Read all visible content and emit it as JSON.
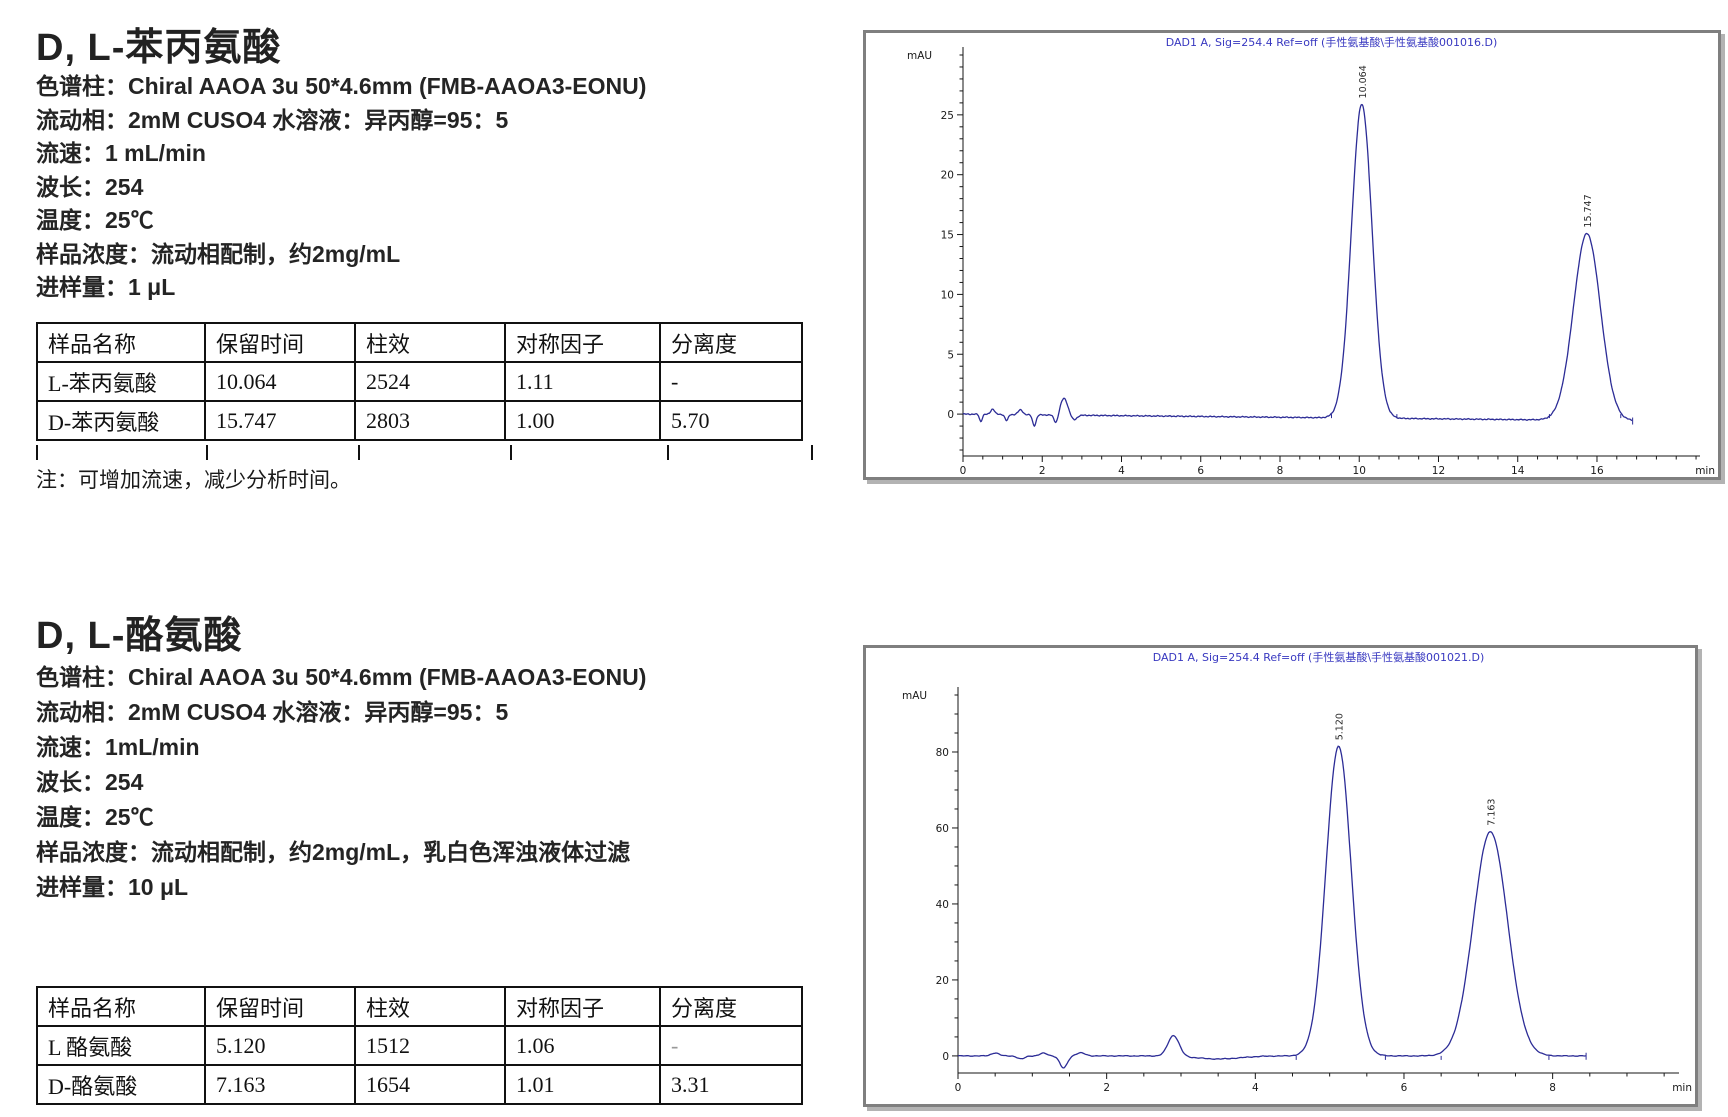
{
  "sections": [
    {
      "title": "D, L-苯丙氨酸",
      "params": [
        "色谱柱：Chiral AAOA 3u 50*4.6mm (FMB-AAOA3-EONU)",
        "流动相：2mM CUSO4 水溶液：异丙醇=95：5",
        "流速：1 mL/min",
        "波长：254",
        "温度：25℃",
        "样品浓度：流动相配制，约2mg/mL",
        "进样量：1 μL"
      ],
      "table": {
        "headers": [
          "样品名称",
          "保留时间",
          "柱效",
          "对称因子",
          "分离度"
        ],
        "rows": [
          [
            "L-苯丙氨酸",
            "10.064",
            "2524",
            "1.11",
            "-"
          ],
          [
            "D-苯丙氨酸",
            "15.747",
            "2803",
            "1.00",
            "5.70"
          ]
        ]
      },
      "note": "注：可增加流速，减少分析时间。"
    },
    {
      "title": "D, L-酪氨酸",
      "params": [
        "色谱柱：Chiral AAOA 3u 50*4.6mm (FMB-AAOA3-EONU)",
        "流动相：2mM CUSO4 水溶液：异丙醇=95：5",
        "流速：1mL/min",
        "波长：254",
        "温度：25℃",
        "样品浓度：流动相配制，约2mg/mL，乳白色浑浊液体过滤",
        "进样量：10 μL"
      ],
      "table": {
        "headers": [
          "样品名称",
          "保留时间",
          "柱效",
          "对称因子",
          "分离度"
        ],
        "rows": [
          [
            "L 酪氨酸",
            "5.120",
            "1512",
            "1.06",
            "-"
          ],
          [
            "D-酪氨酸",
            "7.163",
            "1654",
            "1.01",
            "3.31"
          ]
        ]
      },
      "note": ""
    }
  ],
  "chart_data": [
    {
      "type": "line",
      "title": "DAD1 A, Sig=254.4 Ref=off (手性氨基酸\\手性氨基酸001016.D)",
      "ylabel": "mAU",
      "xlabel": "min",
      "xlim": [
        0,
        18.6
      ],
      "ylim": [
        -3.5,
        30
      ],
      "xticks": [
        0,
        2,
        4,
        6,
        8,
        10,
        12,
        14,
        16
      ],
      "yticks": [
        0,
        5,
        10,
        15,
        20,
        25
      ],
      "x_minor": 0.5,
      "y_minor": 1,
      "trace_end": 16.9,
      "peaks": [
        {
          "rt": 10.064,
          "height": 26.2,
          "sigma": 0.26,
          "label": "10.064"
        },
        {
          "rt": 15.747,
          "height": 15.6,
          "sigma": 0.34,
          "label": "15.747"
        }
      ],
      "baseline_features": [
        {
          "rt": 0.45,
          "height": -0.6,
          "sigma": 0.035
        },
        {
          "rt": 0.75,
          "height": 0.45,
          "sigma": 0.05
        },
        {
          "rt": 1.1,
          "height": -0.5,
          "sigma": 0.04
        },
        {
          "rt": 1.45,
          "height": 0.4,
          "sigma": 0.06
        },
        {
          "rt": 1.8,
          "height": -0.9,
          "sigma": 0.045
        },
        {
          "rt": 2.35,
          "height": -0.7,
          "sigma": 0.05
        },
        {
          "rt": 2.55,
          "height": 1.4,
          "sigma": 0.09
        },
        {
          "rt": 2.8,
          "height": -0.4,
          "sigma": 0.07
        }
      ],
      "int_ticks": [
        9.3,
        10.95,
        14.8,
        16.6
      ],
      "end_marker": true,
      "drift_per_min": -0.033,
      "noise": 0.05,
      "line_color": "#2c2c96",
      "title_color": "#3838c0",
      "grid": false,
      "legend": "none"
    },
    {
      "type": "line",
      "title": "DAD1 A, Sig=254.4 Ref=off (手性氨基酸\\手性氨基酸001021.D)",
      "ylabel": "mAU",
      "xlabel": "min",
      "xlim": [
        0,
        9.7
      ],
      "ylim": [
        -4.5,
        95
      ],
      "xticks": [
        0,
        2,
        4,
        6,
        8
      ],
      "yticks": [
        0,
        20,
        40,
        60,
        80
      ],
      "x_minor": 0.5,
      "y_minor": 5,
      "trace_end": 8.45,
      "peaks": [
        {
          "rt": 5.12,
          "height": 81.5,
          "sigma": 0.17,
          "label": "5.120"
        },
        {
          "rt": 7.163,
          "height": 59.0,
          "sigma": 0.23,
          "label": "7.163"
        }
      ],
      "baseline_features": [
        {
          "rt": 0.5,
          "height": 0.8,
          "sigma": 0.05
        },
        {
          "rt": 0.85,
          "height": -0.8,
          "sigma": 0.05
        },
        {
          "rt": 1.15,
          "height": 0.7,
          "sigma": 0.05
        },
        {
          "rt": 1.42,
          "height": -3.2,
          "sigma": 0.05
        },
        {
          "rt": 1.65,
          "height": 0.8,
          "sigma": 0.06
        },
        {
          "rt": 2.9,
          "height": 5.5,
          "sigma": 0.075
        },
        {
          "rt": 3.5,
          "height": -0.8,
          "sigma": 0.3
        }
      ],
      "int_ticks": [
        4.55,
        5.75,
        6.5,
        7.95
      ],
      "end_marker": true,
      "drift_per_min": 0,
      "noise": 0.12,
      "line_color": "#2c2c96",
      "title_color": "#3838c0",
      "grid": false,
      "legend": "none"
    }
  ]
}
